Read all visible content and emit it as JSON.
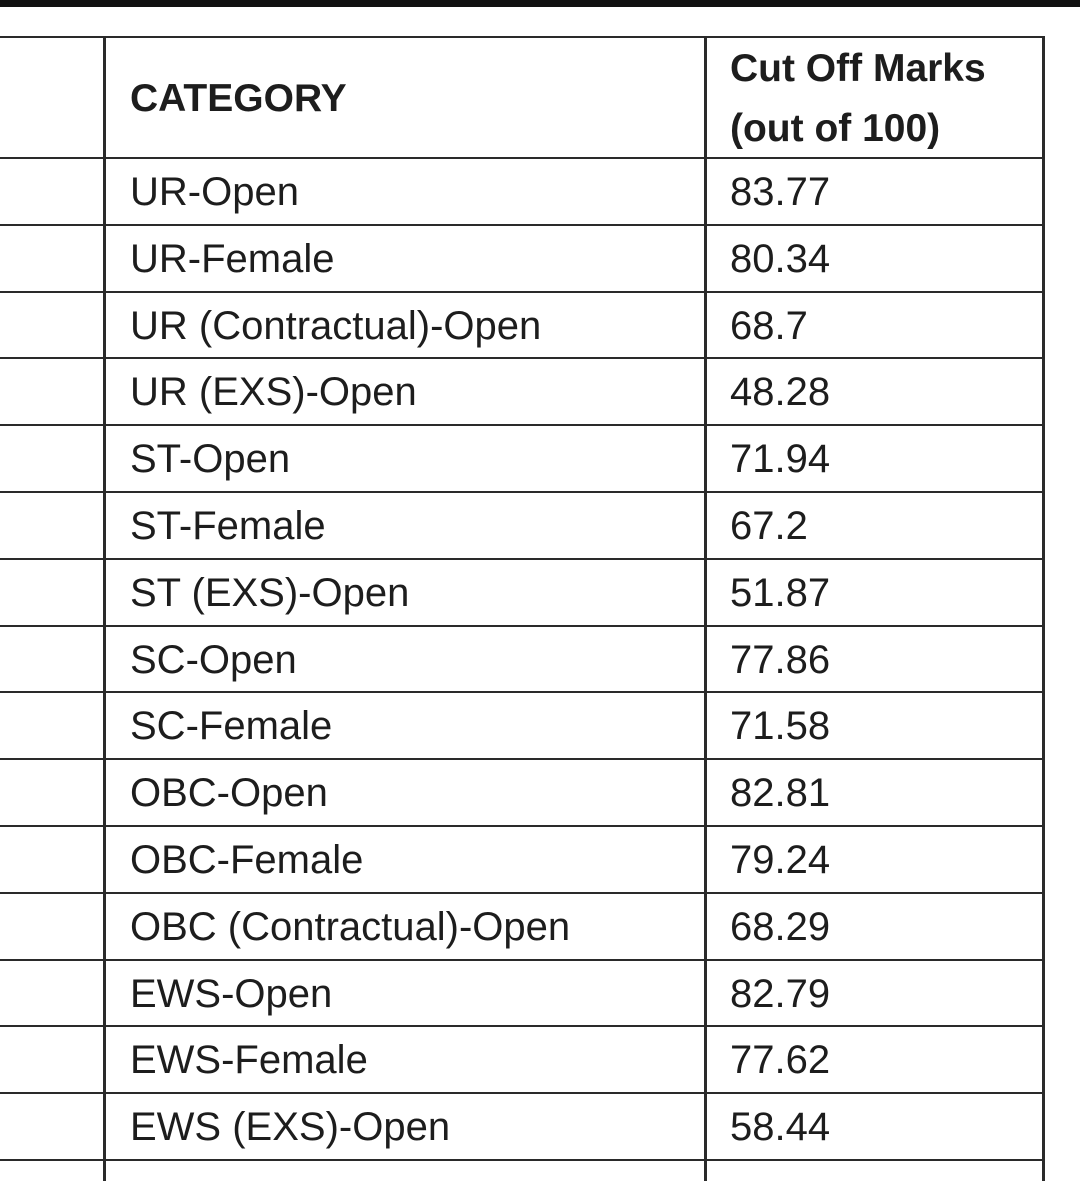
{
  "table": {
    "headers": {
      "category": "CATEGORY",
      "cutoff_line1": "Cut Off Marks",
      "cutoff_line2": "(out of 100)"
    },
    "rows": [
      {
        "category": "UR-Open",
        "cutoff": "83.77"
      },
      {
        "category": "UR-Female",
        "cutoff": "80.34"
      },
      {
        "category": "UR (Contractual)-Open",
        "cutoff": "68.7"
      },
      {
        "category": "UR (EXS)-Open",
        "cutoff": "48.28"
      },
      {
        "category": "ST-Open",
        "cutoff": "71.94"
      },
      {
        "category": "ST-Female",
        "cutoff": "67.2"
      },
      {
        "category": "ST (EXS)-Open",
        "cutoff": "51.87"
      },
      {
        "category": "SC-Open",
        "cutoff": "77.86"
      },
      {
        "category": "SC-Female",
        "cutoff": "71.58"
      },
      {
        "category": "OBC-Open",
        "cutoff": "82.81"
      },
      {
        "category": "OBC-Female",
        "cutoff": "79.24"
      },
      {
        "category": "OBC (Contractual)-Open",
        "cutoff": "68.29"
      },
      {
        "category": "EWS-Open",
        "cutoff": "82.79"
      },
      {
        "category": "EWS-Female",
        "cutoff": "77.62"
      },
      {
        "category": "EWS (EXS)-Open",
        "cutoff": "58.44"
      }
    ]
  }
}
